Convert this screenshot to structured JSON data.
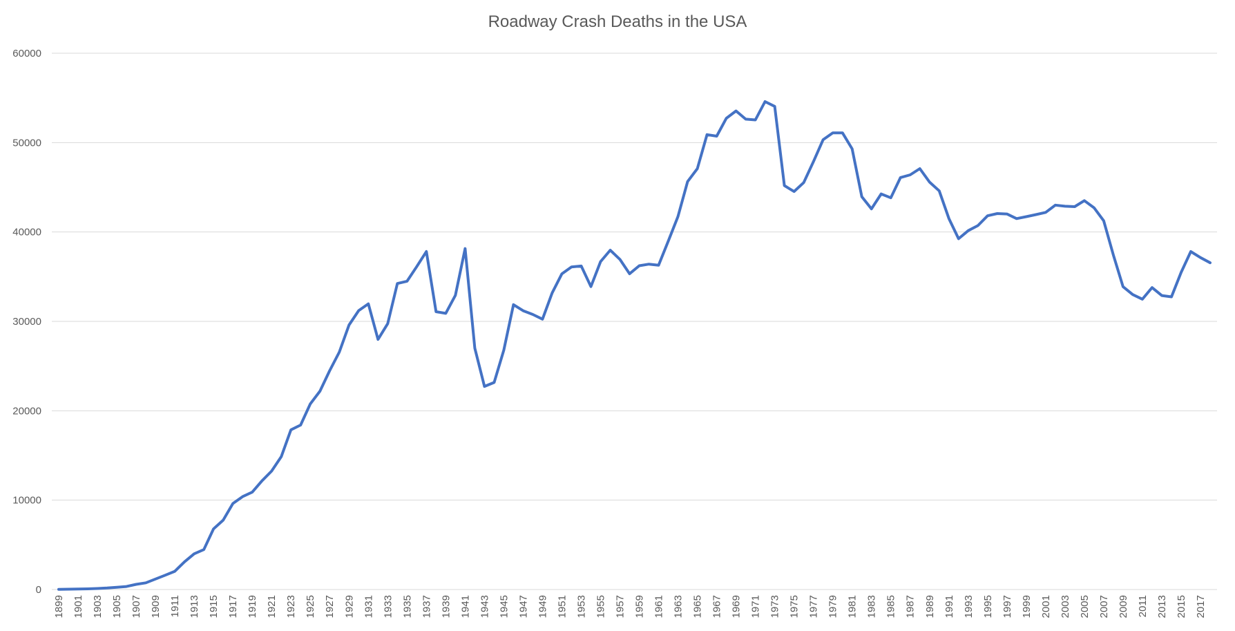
{
  "chart_data": {
    "type": "line",
    "title": "Roadway Crash Deaths in the USA",
    "xlabel": "",
    "ylabel": "",
    "ylim": [
      0,
      60000
    ],
    "yticks": [
      "0",
      "10000",
      "20000",
      "30000",
      "40000",
      "50000",
      "60000"
    ],
    "xtick_labels": [
      "1899",
      "1901",
      "1903",
      "1905",
      "1907",
      "1909",
      "1911",
      "1913",
      "1915",
      "1917",
      "1919",
      "1921",
      "1923",
      "1925",
      "1927",
      "1929",
      "1931",
      "1933",
      "1935",
      "1937",
      "1939",
      "1941",
      "1943",
      "1945",
      "1947",
      "1949",
      "1951",
      "1953",
      "1955",
      "1957",
      "1959",
      "1961",
      "1963",
      "1965",
      "1967",
      "1969",
      "1971",
      "1973",
      "1975",
      "1977",
      "1979",
      "1981",
      "1983",
      "1985",
      "1987",
      "1989",
      "1991",
      "1993",
      "1995",
      "1997",
      "1999",
      "2001",
      "2003",
      "2005",
      "2007",
      "2009",
      "2011",
      "2013",
      "2015",
      "2017"
    ],
    "grid": true,
    "legend": "none",
    "line_color": "#4472c4",
    "series": [
      {
        "x": [
          1899,
          1900,
          1901,
          1902,
          1903,
          1904,
          1905,
          1906,
          1907,
          1908,
          1909,
          1910,
          1911,
          1912,
          1913,
          1914,
          1915,
          1916,
          1917,
          1918,
          1919,
          1920,
          1921,
          1922,
          1923,
          1924,
          1925,
          1926,
          1927,
          1928,
          1929,
          1930,
          1931,
          1932,
          1933,
          1934,
          1935,
          1936,
          1937,
          1938,
          1939,
          1940,
          1941,
          1942,
          1943,
          1944,
          1945,
          1946,
          1947,
          1948,
          1949,
          1950,
          1951,
          1952,
          1953,
          1954,
          1955,
          1956,
          1957,
          1958,
          1959,
          1960,
          1961,
          1962,
          1963,
          1964,
          1965,
          1966,
          1967,
          1968,
          1969,
          1970,
          1971,
          1972,
          1973,
          1974,
          1975,
          1976,
          1977,
          1978,
          1979,
          1980,
          1981,
          1982,
          1983,
          1984,
          1985,
          1986,
          1987,
          1988,
          1989,
          1990,
          1991,
          1992,
          1993,
          1994,
          1995,
          1996,
          1997,
          1998,
          1999,
          2000,
          2001,
          2002,
          2003,
          2004,
          2005,
          2006,
          2007,
          2008,
          2009,
          2010,
          2011,
          2012,
          2013,
          2014,
          2015,
          2016,
          2017,
          2018
        ],
        "values": [
          26,
          36,
          54,
          79,
          117,
          172,
          252,
          338,
          581,
          751,
          1174,
          1599,
          2043,
          3100,
          4001,
          4468,
          6779,
          7766,
          9630,
          10390,
          10896,
          12155,
          13253,
          14859,
          17870,
          18400,
          20771,
          22194,
          24470,
          26557,
          29592,
          31204,
          31963,
          27979,
          29746,
          34240,
          34494,
          36126,
          37819,
          31083,
          30895,
          32914,
          38142,
          27007,
          22727,
          23165,
          26785,
          31874,
          31193,
          30775,
          30246,
          33186,
          35309,
          36088,
          36190,
          33890,
          36688,
          37965,
          36932,
          35331,
          36223,
          36399,
          36285,
          38980,
          41723,
          45645,
          47089,
          50894,
          50724,
          52725,
          53543,
          52627,
          52542,
          54589,
          54052,
          45196,
          44525,
          45523,
          47878,
          50331,
          51093,
          51091,
          49301,
          43945,
          42589,
          44257,
          43825,
          46087,
          46390,
          47087,
          45582,
          44599,
          41508,
          39250,
          40150,
          40716,
          41817,
          42065,
          42013,
          41501,
          41717,
          41945,
          42196,
          43005,
          42884,
          42836,
          43510,
          42708,
          41259,
          37423,
          33883,
          32999,
          32479,
          33782,
          32893,
          32744,
          35484,
          37806,
          37133,
          36560
        ]
      }
    ]
  }
}
